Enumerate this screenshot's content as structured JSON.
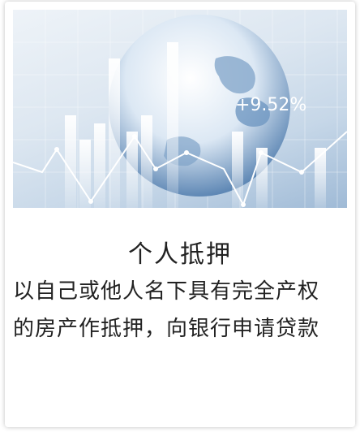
{
  "card": {
    "banner": {
      "badge_text": "+9.52%"
    },
    "title": "个人抵押",
    "description_line1": "以自己或他人名下具有完全产权",
    "description_line2": "的房产作抵押，向银行申请贷款"
  },
  "colors": {
    "banner_blue": "#6d95c0",
    "text": "#222222"
  }
}
